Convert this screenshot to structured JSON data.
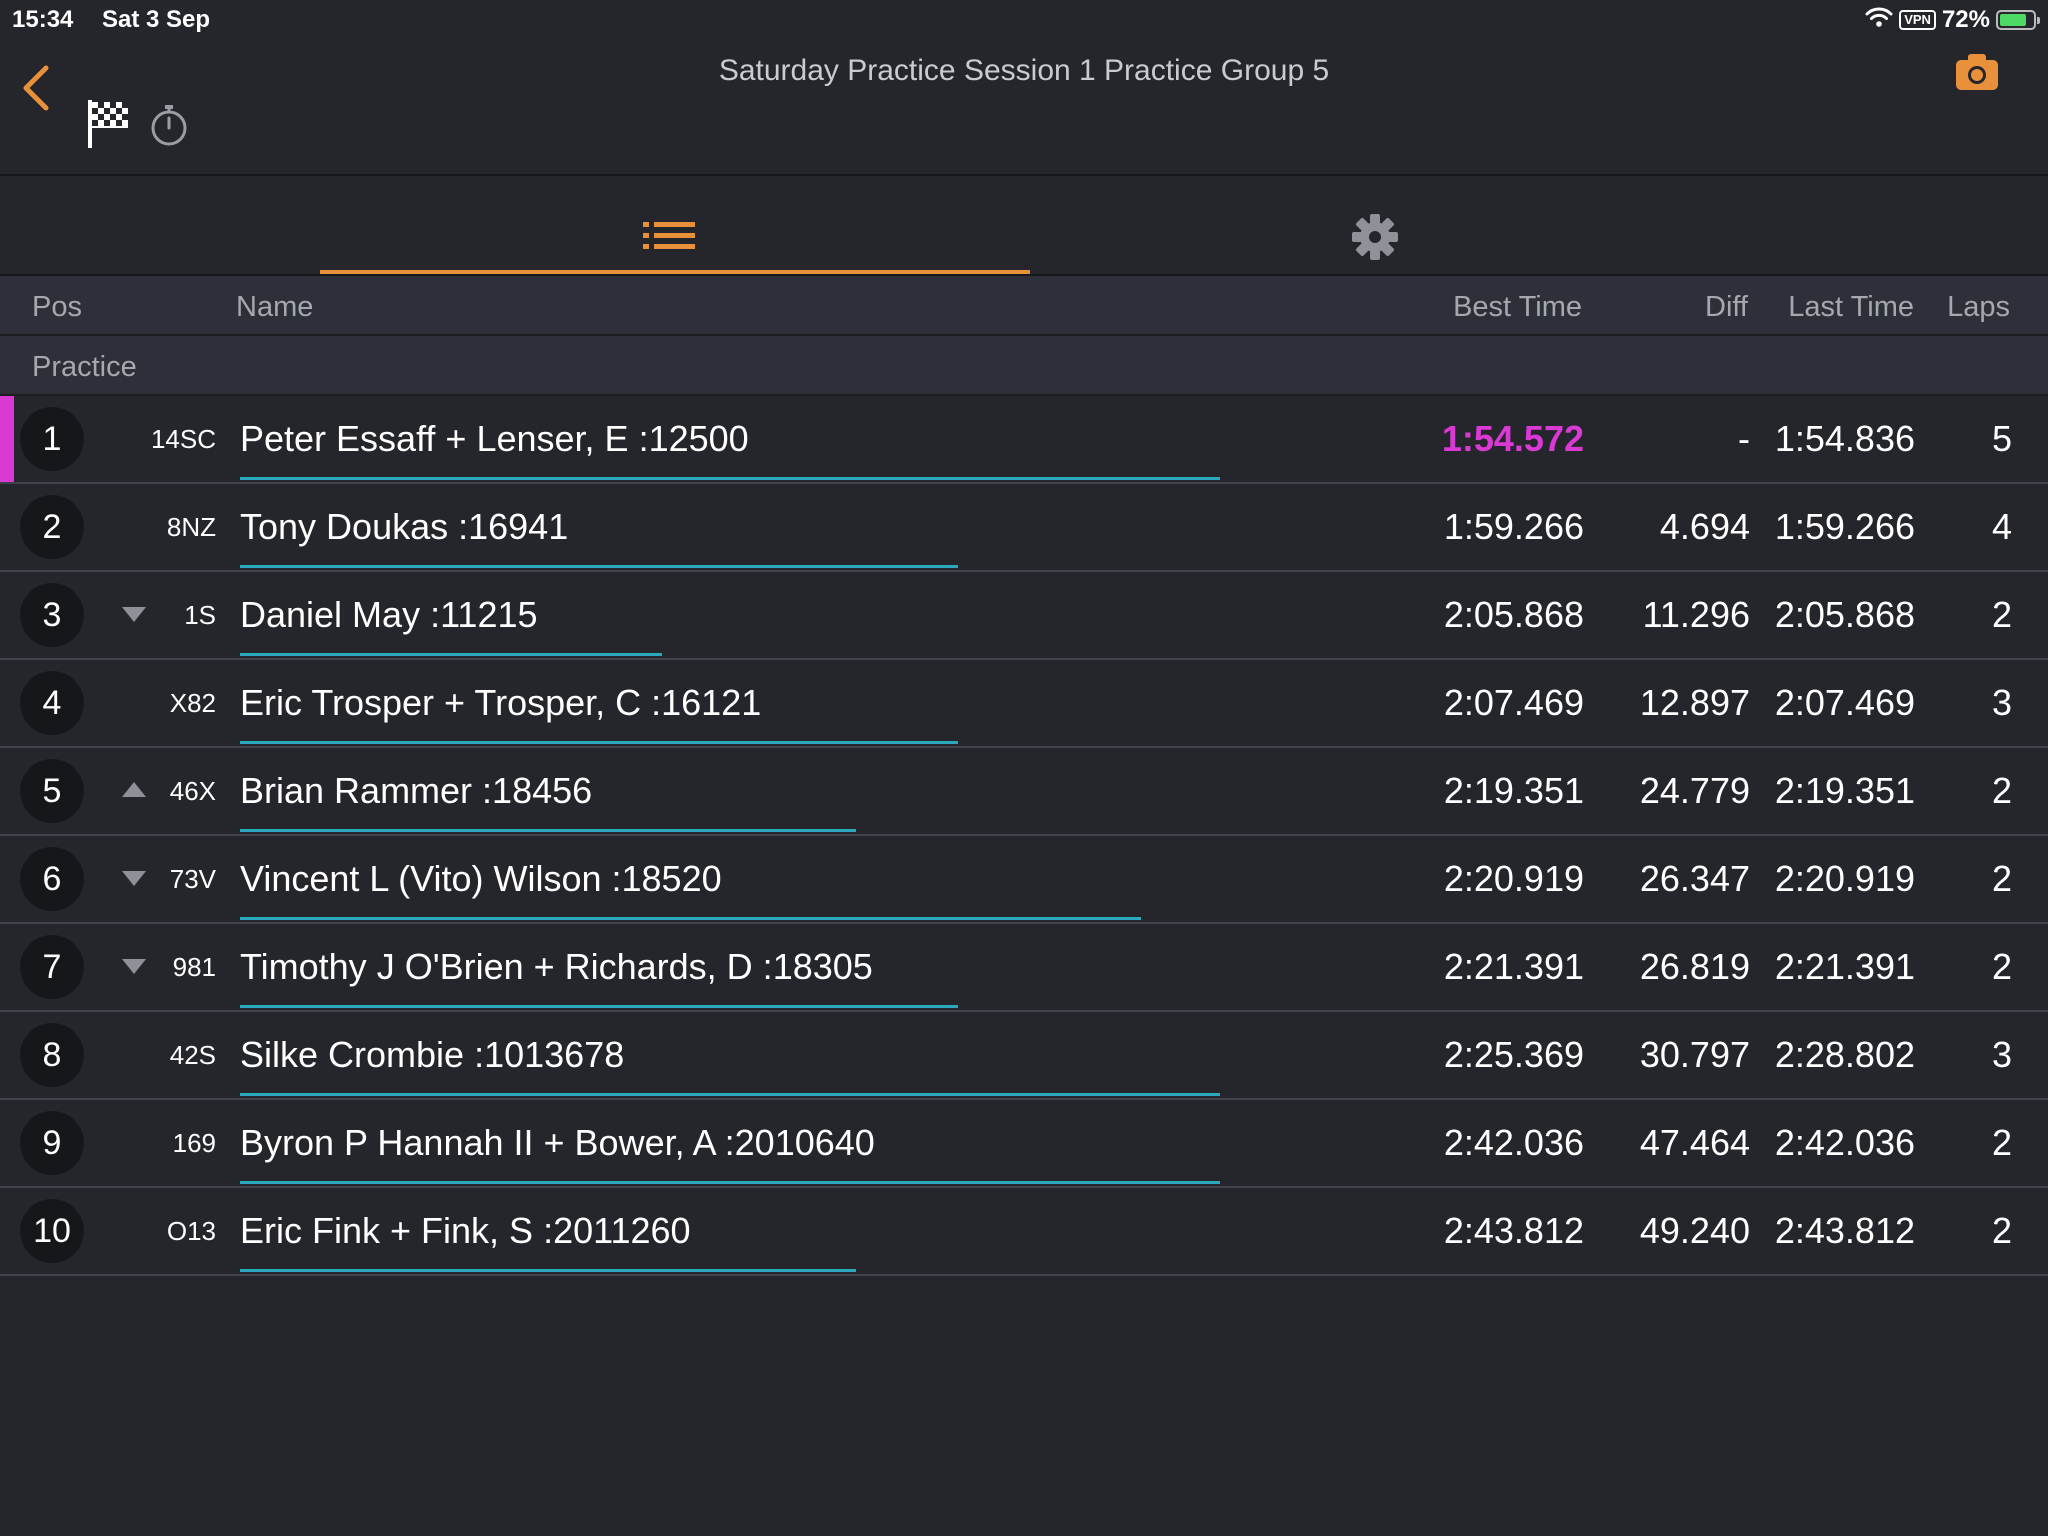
{
  "status_bar": {
    "time": "15:34",
    "date": "Sat 3 Sep",
    "vpn": "VPN",
    "battery": "72%"
  },
  "header": {
    "title": "Saturday Practice Session 1 Practice Group 5"
  },
  "icons": {
    "back": "chevron-left-icon",
    "flag": "checkered-flag-icon",
    "stopwatch": "stopwatch-icon",
    "camera": "camera-icon",
    "list_tab": "list-icon",
    "settings_tab": "gear-icon"
  },
  "colors": {
    "accent": "#e8913a",
    "fastest": "#d93ad4",
    "progress": "#2ca7c0",
    "background": "#24262c"
  },
  "columns": {
    "pos": "Pos",
    "name": "Name",
    "best": "Best Time",
    "diff": "Diff",
    "last": "Last Time",
    "laps": "Laps"
  },
  "group_label": "Practice",
  "rows": [
    {
      "pos": "1",
      "trend": "none",
      "number": "14SC",
      "name": "Peter Essaff + Lenser, E :12500",
      "best": "1:54.572",
      "diff": "-",
      "last": "1:54.836",
      "laps": "5",
      "fastest": true,
      "progress": 0.86
    },
    {
      "pos": "2",
      "trend": "none",
      "number": "8NZ",
      "name": "Tony Doukas :16941",
      "best": "1:59.266",
      "diff": "4.694",
      "last": "1:59.266",
      "laps": "4",
      "fastest": false,
      "progress": 0.63
    },
    {
      "pos": "3",
      "trend": "down",
      "number": "1S",
      "name": "Daniel May :11215",
      "best": "2:05.868",
      "diff": "11.296",
      "last": "2:05.868",
      "laps": "2",
      "fastest": false,
      "progress": 0.37
    },
    {
      "pos": "4",
      "trend": "none",
      "number": "X82",
      "name": "Eric Trosper + Trosper, C :16121",
      "best": "2:07.469",
      "diff": "12.897",
      "last": "2:07.469",
      "laps": "3",
      "fastest": false,
      "progress": 0.63
    },
    {
      "pos": "5",
      "trend": "up",
      "number": "46X",
      "name": "Brian Rammer :18456",
      "best": "2:19.351",
      "diff": "24.779",
      "last": "2:19.351",
      "laps": "2",
      "fastest": false,
      "progress": 0.54
    },
    {
      "pos": "6",
      "trend": "down",
      "number": "73V",
      "name": "Vincent L (Vito) Wilson :18520",
      "best": "2:20.919",
      "diff": "26.347",
      "last": "2:20.919",
      "laps": "2",
      "fastest": false,
      "progress": 0.79
    },
    {
      "pos": "7",
      "trend": "down",
      "number": "981",
      "name": "Timothy J O'Brien + Richards, D :18305",
      "best": "2:21.391",
      "diff": "26.819",
      "last": "2:21.391",
      "laps": "2",
      "fastest": false,
      "progress": 0.63
    },
    {
      "pos": "8",
      "trend": "none",
      "number": "42S",
      "name": "Silke Crombie :1013678",
      "best": "2:25.369",
      "diff": "30.797",
      "last": "2:28.802",
      "laps": "3",
      "fastest": false,
      "progress": 0.86
    },
    {
      "pos": "9",
      "trend": "none",
      "number": "169",
      "name": "Byron P Hannah II + Bower, A :2010640",
      "best": "2:42.036",
      "diff": "47.464",
      "last": "2:42.036",
      "laps": "2",
      "fastest": false,
      "progress": 0.86
    },
    {
      "pos": "10",
      "trend": "none",
      "number": "O13",
      "name": "Eric Fink + Fink, S :2011260",
      "best": "2:43.812",
      "diff": "49.240",
      "last": "2:43.812",
      "laps": "2",
      "fastest": false,
      "progress": 0.54
    }
  ]
}
